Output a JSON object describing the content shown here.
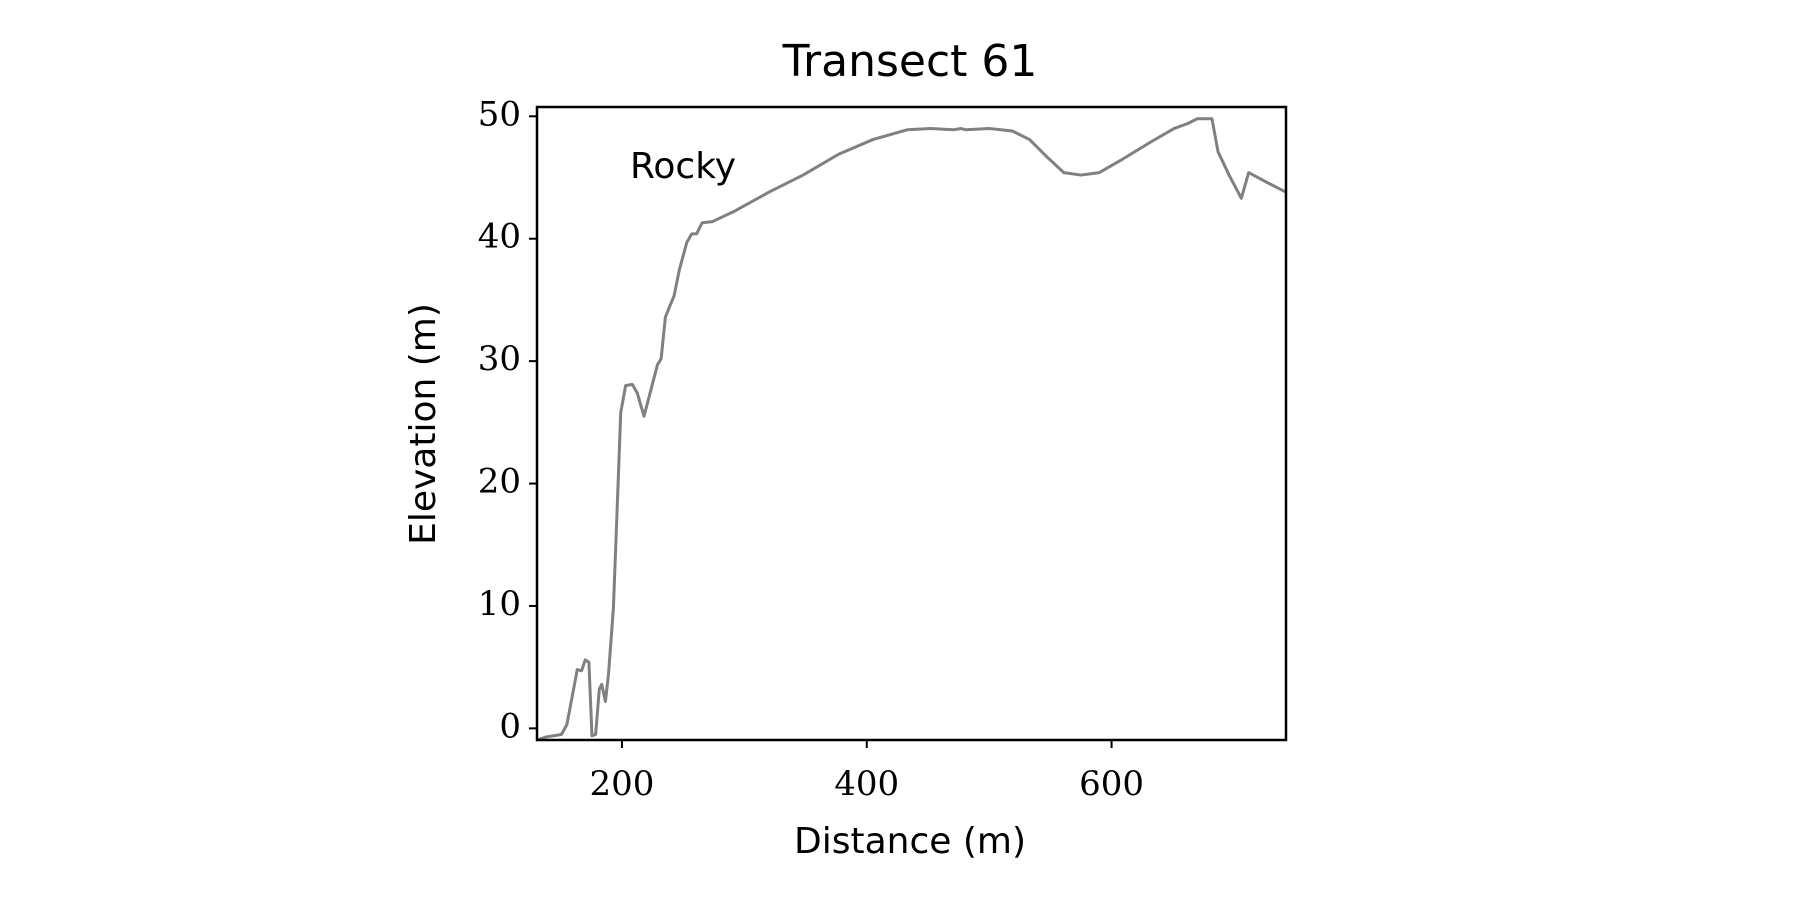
{
  "chart_data": {
    "type": "line",
    "title": "Transect 61",
    "xlabel": "Distance (m)",
    "ylabel": "Elevation (m)",
    "annotations": [
      "Rocky"
    ],
    "xlim": [
      130.6,
      742.5
    ],
    "ylim": [
      -0.95,
      50.76
    ],
    "xticks": [
      200,
      400,
      600
    ],
    "yticks": [
      0,
      10,
      20,
      30,
      40,
      50
    ],
    "grid": false,
    "series": [
      {
        "name": "Elevation",
        "color": "#808080",
        "x": [
          130.6,
          138,
          150.5,
          155,
          163.5,
          167,
          170,
          173,
          175.5,
          178.5,
          181.5,
          183.5,
          186.5,
          189,
          193,
          196,
          199,
          203,
          208.5,
          212.5,
          218,
          223,
          229,
          232,
          235.5,
          239.5,
          242.5,
          247,
          253,
          257,
          261,
          265.5,
          274,
          291,
          320,
          348,
          377,
          405,
          433,
          452,
          471,
          477,
          481,
          500,
          519,
          533,
          547,
          561,
          575,
          590,
          609,
          632,
          651,
          662,
          670,
          682,
          687,
          696,
          706,
          712,
          727,
          742.5
        ],
        "values": [
          -0.95,
          -0.7,
          -0.5,
          0.3,
          4.8,
          4.7,
          5.6,
          5.4,
          -0.6,
          -0.5,
          3.2,
          3.6,
          2.2,
          4.4,
          9.8,
          17.7,
          25.8,
          28,
          28.1,
          27.4,
          25.5,
          27.4,
          29.7,
          30.2,
          33.6,
          34.6,
          35.3,
          37.5,
          39.7,
          40.4,
          40.4,
          41.3,
          41.4,
          42.2,
          43.8,
          45.2,
          46.9,
          48.1,
          48.9,
          49,
          48.9,
          49,
          48.9,
          49,
          48.8,
          48.1,
          46.7,
          45.4,
          45.2,
          45.4,
          46.5,
          47.9,
          49,
          49.4,
          49.8,
          49.8,
          47.1,
          45.2,
          43.3,
          45.4,
          44.6,
          43.8
        ]
      }
    ]
  }
}
